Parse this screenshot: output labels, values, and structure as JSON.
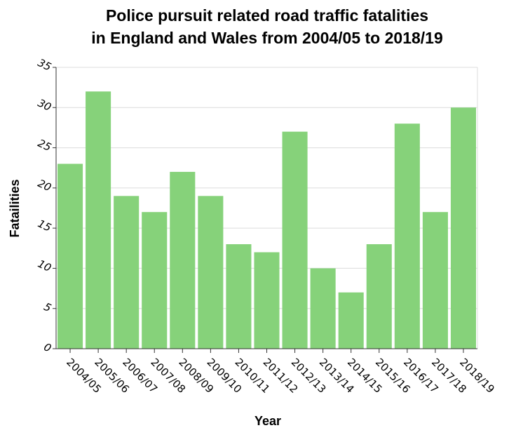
{
  "chart_data": {
    "type": "bar",
    "title_lines": [
      "Police pursuit related road traffic fatalities",
      "in England and Wales from 2004/05 to 2018/19"
    ],
    "xlabel": "Year",
    "ylabel": "Fatailities",
    "categories": [
      "2004/05",
      "2005/06",
      "2006/07",
      "2007/08",
      "2008/09",
      "2009/10",
      "2010/11",
      "2011/12",
      "2012/13",
      "2013/14",
      "2014/15",
      "2015/16",
      "2016/17",
      "2017/18",
      "2018/19"
    ],
    "values": [
      23,
      32,
      19,
      17,
      22,
      19,
      13,
      12,
      27,
      10,
      7,
      13,
      28,
      17,
      30
    ],
    "ylim": [
      0,
      35
    ],
    "yticks": [
      0,
      5,
      10,
      15,
      20,
      25,
      30,
      35
    ],
    "grid": true,
    "bar_color": "#86d27a"
  }
}
